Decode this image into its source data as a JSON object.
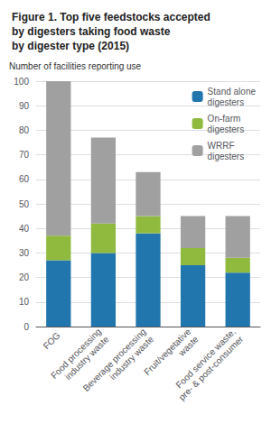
{
  "chart_data": {
    "type": "bar",
    "title": "Figure 1. Top five feedstocks accepted\nby digesters taking food waste\nby digester type (2015)",
    "ylabel": "Number of facilities reporting use",
    "categories": [
      "FOG",
      "Food processing\nindustry waste",
      "Beverage processing\nindustry waste",
      "Fruit/vegetative\nwaste",
      "Food service waste,\npre- & post-consumer"
    ],
    "series": [
      {
        "name": "Stand alone\ndigesters",
        "color": "#2176ae",
        "values": [
          27,
          30,
          38,
          25,
          22
        ]
      },
      {
        "name": "On-farm\ndigesters",
        "color": "#8fba3e",
        "values": [
          10,
          12,
          7,
          7,
          6
        ]
      },
      {
        "name": "WRRF\ndigesters",
        "color": "#a0a0a0",
        "values": [
          63,
          35,
          18,
          13,
          17
        ]
      }
    ],
    "stacked": true,
    "ylim": [
      0,
      100
    ],
    "yticks": [
      0,
      10,
      20,
      30,
      40,
      50,
      60,
      70,
      80,
      90,
      100
    ],
    "grid": true,
    "legend": "upper right"
  }
}
